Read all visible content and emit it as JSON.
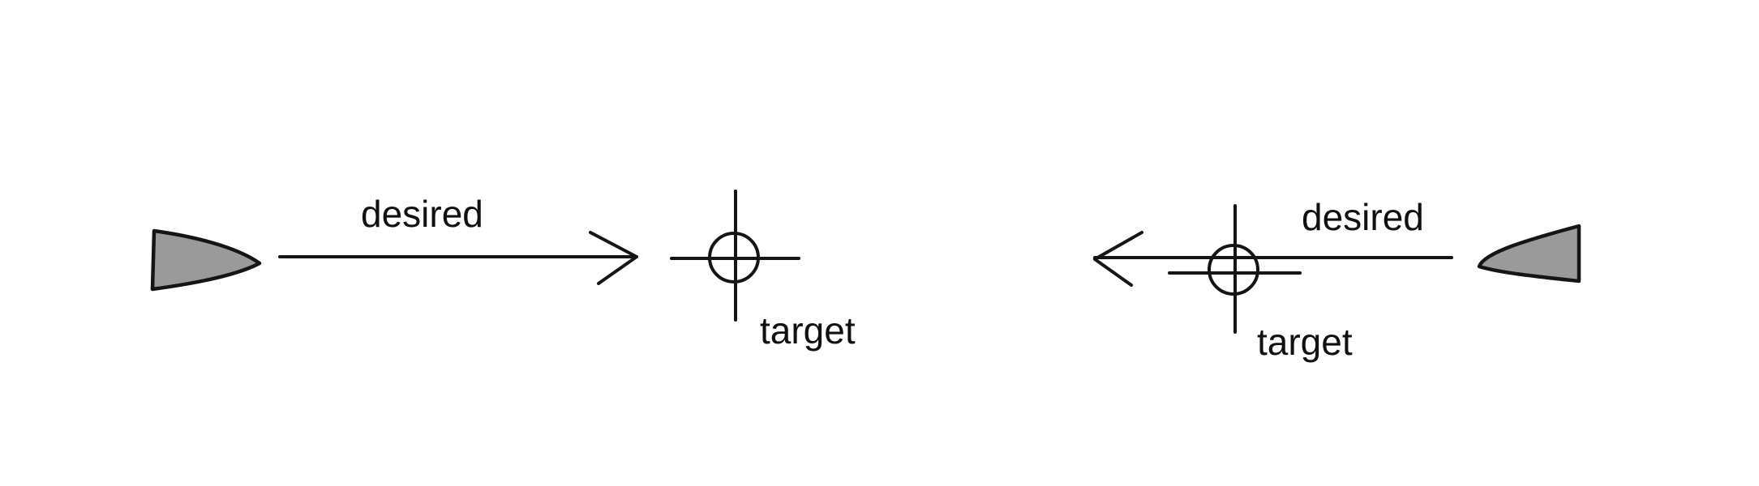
{
  "diagram": {
    "left_scene": {
      "desired_label": "desired",
      "target_label": "target",
      "heading_direction": "right"
    },
    "right_scene": {
      "desired_label": "desired",
      "target_label": "target",
      "heading_direction": "left"
    },
    "colors": {
      "ink": "#151515",
      "vehicle_fill": "#9a9a9a",
      "background": "#ffffff"
    },
    "icons": [
      "vehicle-icon",
      "crosshair-target-icon",
      "arrow-icon"
    ]
  }
}
